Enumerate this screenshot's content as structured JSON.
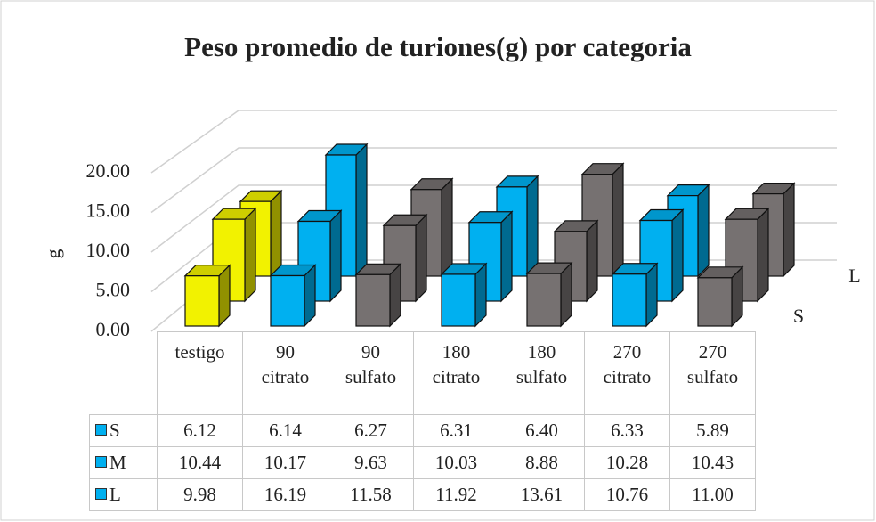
{
  "chart_data": {
    "type": "bar3d",
    "title": "Peso promedio de turiones(g) por categoria",
    "y_label": "g",
    "categories": [
      "testigo",
      "90\ncitrato",
      "90\nsulfato",
      "180\ncitrato",
      "180\nsulfato",
      "270\ncitrato",
      "270\nsulfato"
    ],
    "category_colors": [
      "#f2f200",
      "#00b0f0",
      "#767171",
      "#00b0f0",
      "#767171",
      "#00b0f0",
      "#767171"
    ],
    "series": [
      {
        "name": "S",
        "color": "#00b0f0",
        "values": [
          6.12,
          6.14,
          6.27,
          6.31,
          6.4,
          6.33,
          5.89
        ],
        "value_labels": [
          "6.12",
          "6.14",
          "6.27",
          "6.31",
          "6.40",
          "6.33",
          "5.89"
        ]
      },
      {
        "name": "M",
        "color": "#00b0f0",
        "values": [
          10.44,
          10.17,
          9.63,
          10.03,
          8.88,
          10.28,
          10.43
        ],
        "value_labels": [
          "10.44",
          "10.17",
          "9.63",
          "10.03",
          "8.88",
          "10.28",
          "10.43"
        ]
      },
      {
        "name": "L",
        "color": "#00b0f0",
        "values": [
          9.98,
          16.19,
          11.58,
          11.92,
          13.61,
          10.76,
          11.0
        ],
        "value_labels": [
          "9.98",
          "16.19",
          "11.58",
          "11.92",
          "13.61",
          "10.76",
          "11.00"
        ]
      }
    ],
    "ylim": [
      0,
      20
    ],
    "yticks": [
      {
        "value": 0,
        "label": "0.00"
      },
      {
        "value": 5,
        "label": "5.00"
      },
      {
        "value": 10,
        "label": "10.00"
      },
      {
        "value": 15,
        "label": "15.00"
      },
      {
        "value": 20,
        "label": "20.00"
      }
    ],
    "grid": true,
    "data_table": true
  }
}
